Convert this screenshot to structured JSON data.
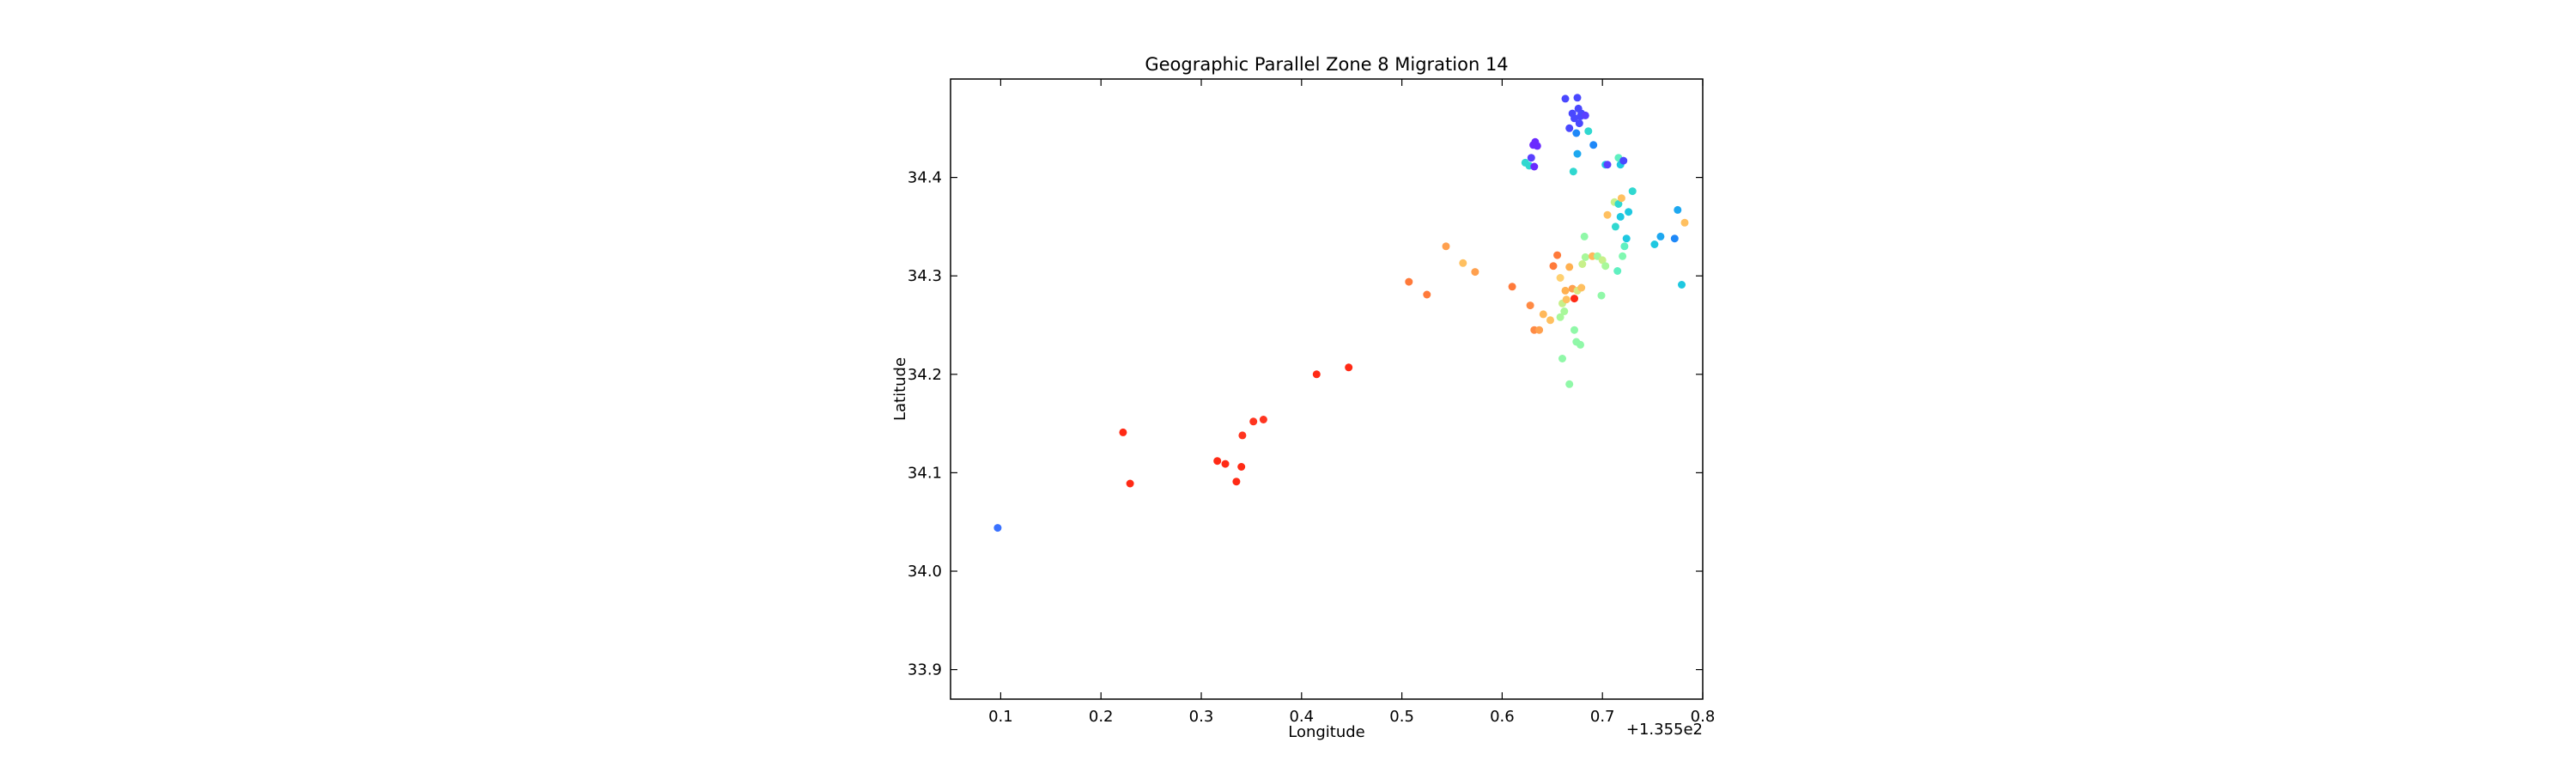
{
  "chart_data": {
    "type": "scatter",
    "title": "Geographic Parallel Zone 8 Migration 14",
    "xlabel": "Longitude",
    "ylabel": "Latitude",
    "x_offset_label": "+1.355e2",
    "xlim": [
      0.05,
      0.8
    ],
    "ylim": [
      33.87,
      34.5
    ],
    "x_ticks": [
      0.1,
      0.2,
      0.3,
      0.4,
      0.5,
      0.6,
      0.7,
      0.8
    ],
    "x_tick_labels": [
      "0.1",
      "0.2",
      "0.3",
      "0.4",
      "0.5",
      "0.6",
      "0.7",
      "0.8"
    ],
    "y_ticks": [
      33.9,
      34.0,
      34.1,
      34.2,
      34.3,
      34.4
    ],
    "y_tick_labels": [
      "33.9",
      "34.0",
      "34.1",
      "34.2",
      "34.3",
      "34.4"
    ],
    "grid": false,
    "colormap": "rainbow",
    "points": [
      {
        "x": 0.097,
        "y": 34.044,
        "color": "#3a72ff"
      },
      {
        "x": 0.222,
        "y": 34.141,
        "color": "#ff2a15"
      },
      {
        "x": 0.229,
        "y": 34.089,
        "color": "#ff2a15"
      },
      {
        "x": 0.316,
        "y": 34.112,
        "color": "#ff2a15"
      },
      {
        "x": 0.324,
        "y": 34.109,
        "color": "#ff2a15"
      },
      {
        "x": 0.335,
        "y": 34.091,
        "color": "#ff2a15"
      },
      {
        "x": 0.34,
        "y": 34.106,
        "color": "#ff2a15"
      },
      {
        "x": 0.341,
        "y": 34.138,
        "color": "#ff3520"
      },
      {
        "x": 0.352,
        "y": 34.152,
        "color": "#ff3520"
      },
      {
        "x": 0.362,
        "y": 34.154,
        "color": "#ff3520"
      },
      {
        "x": 0.415,
        "y": 34.2,
        "color": "#ff2a15"
      },
      {
        "x": 0.447,
        "y": 34.207,
        "color": "#ff2a15"
      },
      {
        "x": 0.507,
        "y": 34.294,
        "color": "#ff7a3a"
      },
      {
        "x": 0.525,
        "y": 34.281,
        "color": "#ff7a3a"
      },
      {
        "x": 0.544,
        "y": 34.33,
        "color": "#ffa04e"
      },
      {
        "x": 0.561,
        "y": 34.313,
        "color": "#ffc060"
      },
      {
        "x": 0.573,
        "y": 34.304,
        "color": "#ffa04e"
      },
      {
        "x": 0.61,
        "y": 34.289,
        "color": "#ff7a3a"
      },
      {
        "x": 0.628,
        "y": 34.27,
        "color": "#ff8a44"
      },
      {
        "x": 0.632,
        "y": 34.245,
        "color": "#ff8a44"
      },
      {
        "x": 0.637,
        "y": 34.245,
        "color": "#ffa04e"
      },
      {
        "x": 0.641,
        "y": 34.261,
        "color": "#ffb85a"
      },
      {
        "x": 0.648,
        "y": 34.255,
        "color": "#ffc060"
      },
      {
        "x": 0.651,
        "y": 34.31,
        "color": "#ff7a3a"
      },
      {
        "x": 0.655,
        "y": 34.321,
        "color": "#ff7a3a"
      },
      {
        "x": 0.658,
        "y": 34.298,
        "color": "#ffd070"
      },
      {
        "x": 0.66,
        "y": 34.272,
        "color": "#c7f08a"
      },
      {
        "x": 0.662,
        "y": 34.264,
        "color": "#a8f89a"
      },
      {
        "x": 0.658,
        "y": 34.258,
        "color": "#a8f89a"
      },
      {
        "x": 0.663,
        "y": 34.285,
        "color": "#ffb050"
      },
      {
        "x": 0.664,
        "y": 34.276,
        "color": "#ffc060"
      },
      {
        "x": 0.667,
        "y": 34.309,
        "color": "#ffb050"
      },
      {
        "x": 0.67,
        "y": 34.287,
        "color": "#ffa04e"
      },
      {
        "x": 0.672,
        "y": 34.277,
        "color": "#ff2a15"
      },
      {
        "x": 0.675,
        "y": 34.285,
        "color": "#d8e880"
      },
      {
        "x": 0.679,
        "y": 34.288,
        "color": "#ffc060"
      },
      {
        "x": 0.68,
        "y": 34.312,
        "color": "#c7f08a"
      },
      {
        "x": 0.683,
        "y": 34.319,
        "color": "#a8f89a"
      },
      {
        "x": 0.66,
        "y": 34.216,
        "color": "#90f8a8"
      },
      {
        "x": 0.667,
        "y": 34.19,
        "color": "#90f8a8"
      },
      {
        "x": 0.672,
        "y": 34.245,
        "color": "#90f8a8"
      },
      {
        "x": 0.674,
        "y": 34.233,
        "color": "#90f8a8"
      },
      {
        "x": 0.678,
        "y": 34.23,
        "color": "#90f8a8"
      },
      {
        "x": 0.682,
        "y": 34.34,
        "color": "#90f8a8"
      },
      {
        "x": 0.69,
        "y": 34.32,
        "color": "#ffb85a"
      },
      {
        "x": 0.695,
        "y": 34.32,
        "color": "#a0f8a0"
      },
      {
        "x": 0.699,
        "y": 34.28,
        "color": "#90f8a8"
      },
      {
        "x": 0.7,
        "y": 34.316,
        "color": "#c7f08a"
      },
      {
        "x": 0.703,
        "y": 34.31,
        "color": "#a8f89a"
      },
      {
        "x": 0.705,
        "y": 34.362,
        "color": "#ffc060"
      },
      {
        "x": 0.712,
        "y": 34.375,
        "color": "#c7f08a"
      },
      {
        "x": 0.713,
        "y": 34.35,
        "color": "#30d8d0"
      },
      {
        "x": 0.715,
        "y": 34.305,
        "color": "#60f0c0"
      },
      {
        "x": 0.716,
        "y": 34.373,
        "color": "#30d8d0"
      },
      {
        "x": 0.718,
        "y": 34.36,
        "color": "#1ec8e0"
      },
      {
        "x": 0.72,
        "y": 34.32,
        "color": "#80f8b0"
      },
      {
        "x": 0.722,
        "y": 34.33,
        "color": "#60f0c0"
      },
      {
        "x": 0.724,
        "y": 34.338,
        "color": "#1ec8e0"
      },
      {
        "x": 0.726,
        "y": 34.365,
        "color": "#1ec8e0"
      },
      {
        "x": 0.73,
        "y": 34.386,
        "color": "#30d8d0"
      },
      {
        "x": 0.719,
        "y": 34.379,
        "color": "#ffc060"
      },
      {
        "x": 0.752,
        "y": 34.332,
        "color": "#1ec8e0"
      },
      {
        "x": 0.758,
        "y": 34.34,
        "color": "#1ea8f0"
      },
      {
        "x": 0.772,
        "y": 34.338,
        "color": "#1e88f8"
      },
      {
        "x": 0.775,
        "y": 34.367,
        "color": "#1ea8f0"
      },
      {
        "x": 0.779,
        "y": 34.291,
        "color": "#1ec8e0"
      },
      {
        "x": 0.782,
        "y": 34.354,
        "color": "#ffc060"
      },
      {
        "x": 0.623,
        "y": 34.415,
        "color": "#30d8d0"
      },
      {
        "x": 0.627,
        "y": 34.412,
        "color": "#30d8d0"
      },
      {
        "x": 0.629,
        "y": 34.42,
        "color": "#5a40ff"
      },
      {
        "x": 0.631,
        "y": 34.433,
        "color": "#6a2aff"
      },
      {
        "x": 0.633,
        "y": 34.436,
        "color": "#6a2aff"
      },
      {
        "x": 0.635,
        "y": 34.432,
        "color": "#6a2aff"
      },
      {
        "x": 0.632,
        "y": 34.411,
        "color": "#6a2aff"
      },
      {
        "x": 0.663,
        "y": 34.48,
        "color": "#4a48ff"
      },
      {
        "x": 0.667,
        "y": 34.45,
        "color": "#4a48ff"
      },
      {
        "x": 0.67,
        "y": 34.465,
        "color": "#4a48ff"
      },
      {
        "x": 0.672,
        "y": 34.46,
        "color": "#4a48ff"
      },
      {
        "x": 0.675,
        "y": 34.481,
        "color": "#4a48ff"
      },
      {
        "x": 0.676,
        "y": 34.47,
        "color": "#4a48ff"
      },
      {
        "x": 0.677,
        "y": 34.455,
        "color": "#4a48ff"
      },
      {
        "x": 0.679,
        "y": 34.465,
        "color": "#4a48ff"
      },
      {
        "x": 0.674,
        "y": 34.445,
        "color": "#1e88f8"
      },
      {
        "x": 0.678,
        "y": 34.462,
        "color": "#4a48ff"
      },
      {
        "x": 0.683,
        "y": 34.463,
        "color": "#5a40ff"
      },
      {
        "x": 0.686,
        "y": 34.447,
        "color": "#30d8d0"
      },
      {
        "x": 0.691,
        "y": 34.433,
        "color": "#1e88f8"
      },
      {
        "x": 0.675,
        "y": 34.424,
        "color": "#1ea8f0"
      },
      {
        "x": 0.671,
        "y": 34.406,
        "color": "#30d8d0"
      },
      {
        "x": 0.703,
        "y": 34.413,
        "color": "#1ec8e0"
      },
      {
        "x": 0.705,
        "y": 34.413,
        "color": "#5a40ff"
      },
      {
        "x": 0.716,
        "y": 34.42,
        "color": "#60f0c0"
      },
      {
        "x": 0.718,
        "y": 34.413,
        "color": "#1ec8e0"
      },
      {
        "x": 0.721,
        "y": 34.417,
        "color": "#4a48ff"
      }
    ]
  }
}
